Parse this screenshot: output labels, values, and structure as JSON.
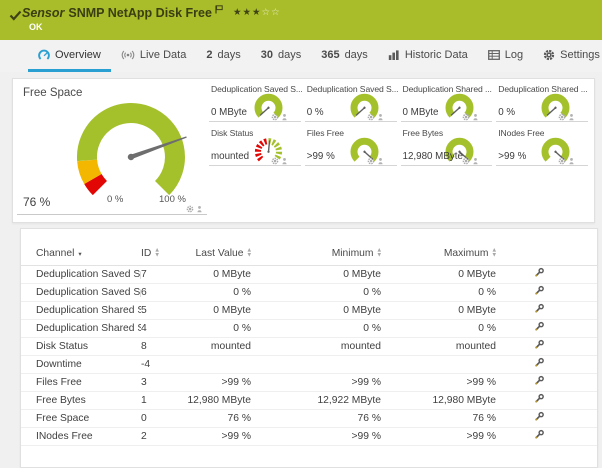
{
  "header": {
    "sensor_label": "Sensor",
    "title": "SNMP NetApp Disk Free",
    "status": "OK",
    "stars_filled": 3,
    "stars_total": 5
  },
  "tabs": [
    {
      "label": "Overview",
      "icon": "gauge-icon",
      "active": true
    },
    {
      "label": "Live Data",
      "icon": "live-icon",
      "active": false
    },
    {
      "num": "2",
      "label": "days",
      "active": false
    },
    {
      "num": "30",
      "label": "days",
      "active": false
    },
    {
      "num": "365",
      "label": "days",
      "active": false
    },
    {
      "label": "Historic Data",
      "icon": "chart-icon",
      "active": false
    },
    {
      "label": "Log",
      "icon": "log-icon",
      "active": false
    },
    {
      "label": "Settings",
      "icon": "gear-icon",
      "active": false
    }
  ],
  "overview": {
    "main_gauge": {
      "label": "Free Space",
      "value": "76 %",
      "min_label": "0 %",
      "max_label": "100 %",
      "percent": 76
    },
    "small_gauges": [
      {
        "label": "Deduplication Saved S...",
        "value": "0 MByte",
        "percent": 1,
        "type": "normal"
      },
      {
        "label": "Deduplication Saved S...",
        "value": "0 %",
        "percent": 1,
        "type": "normal"
      },
      {
        "label": "Deduplication Shared ...",
        "value": "0 MByte",
        "percent": 1,
        "type": "normal"
      },
      {
        "label": "Deduplication Shared ...",
        "value": "0 %",
        "percent": 1,
        "type": "normal"
      },
      {
        "label": "Disk Status",
        "value": "mounted",
        "percent": 52,
        "type": "status"
      },
      {
        "label": "Files Free",
        "value": ">99 %",
        "percent": 99,
        "type": "normal"
      },
      {
        "label": "Free Bytes",
        "value": "12,980 MByte",
        "percent": 99,
        "type": "normal"
      },
      {
        "label": "INodes Free",
        "value": ">99 %",
        "percent": 99,
        "type": "normal"
      }
    ]
  },
  "table": {
    "columns": [
      "Channel",
      "ID",
      "Last Value",
      "Minimum",
      "Maximum"
    ],
    "sorted_column": "Channel",
    "rows": [
      {
        "channel": "Deduplication Saved Sp...",
        "id": "7",
        "last": "0 MByte",
        "min": "0 MByte",
        "max": "0 MByte"
      },
      {
        "channel": "Deduplication Saved Sp...",
        "id": "6",
        "last": "0 %",
        "min": "0 %",
        "max": "0 %"
      },
      {
        "channel": "Deduplication Shared S...",
        "id": "5",
        "last": "0 MByte",
        "min": "0 MByte",
        "max": "0 MByte"
      },
      {
        "channel": "Deduplication Shared S...",
        "id": "4",
        "last": "0 %",
        "min": "0 %",
        "max": "0 %"
      },
      {
        "channel": "Disk Status",
        "id": "8",
        "last": "mounted",
        "min": "mounted",
        "max": "mounted"
      },
      {
        "channel": "Downtime",
        "id": "-4",
        "last": "",
        "min": "",
        "max": ""
      },
      {
        "channel": "Files Free",
        "id": "3",
        "last": ">99 %",
        "min": ">99 %",
        "max": ">99 %"
      },
      {
        "channel": "Free Bytes",
        "id": "1",
        "last": "12,980 MByte",
        "min": "12,922 MByte",
        "max": "12,980 MByte"
      },
      {
        "channel": "Free Space",
        "id": "0",
        "last": "76 %",
        "min": "76 %",
        "max": "76 %"
      },
      {
        "channel": "INodes Free",
        "id": "2",
        "last": ">99 %",
        "min": ">99 %",
        "max": ">99 %"
      }
    ]
  },
  "colors": {
    "header_green": "#a9bc29",
    "gauge_green": "#a4c12c",
    "gauge_yellow": "#f4b700",
    "gauge_red": "#e20604",
    "accent_blue": "#2aa0d2"
  }
}
